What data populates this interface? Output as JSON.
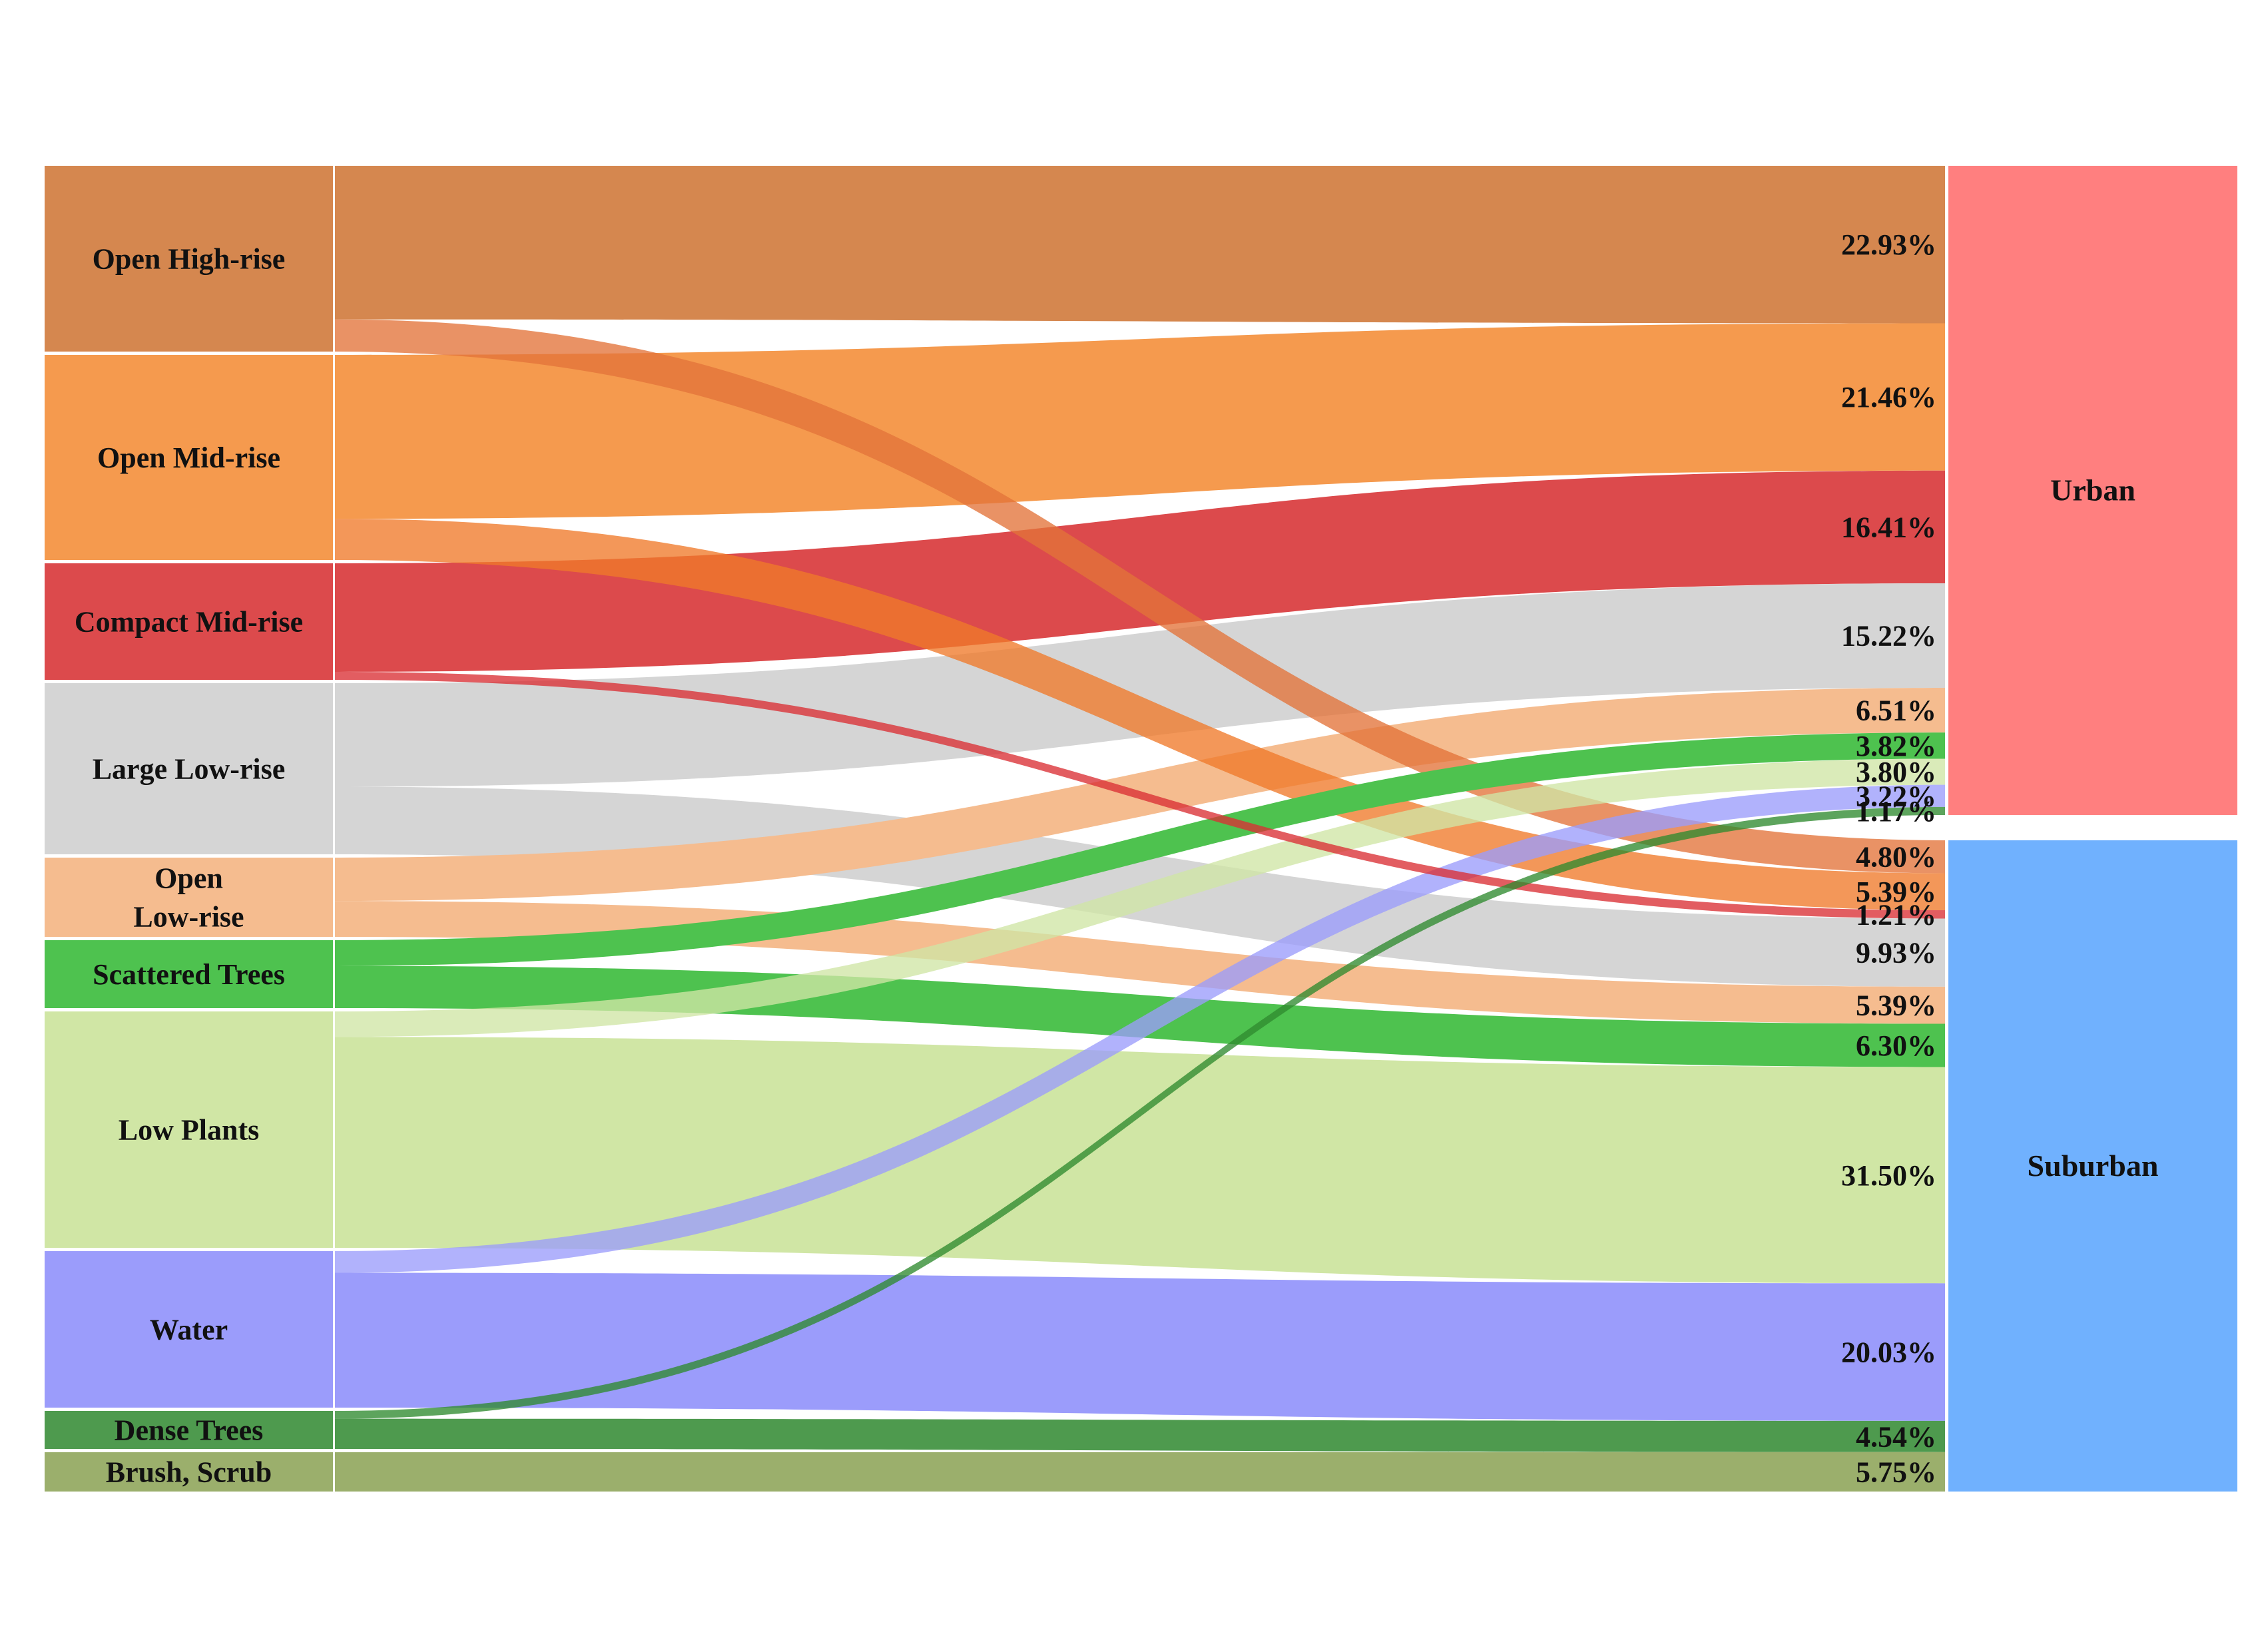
{
  "colors": {
    "open_high_rise": "#D5874F",
    "open_mid_rise": "#F59A4E",
    "compact_mid_rise": "#DC4A4C",
    "large_low_rise": "#D5D5D5",
    "open_low_rise": "#F5BC8F",
    "scattered_trees": "#4EC24F",
    "low_plants": "#D0E6A5",
    "water": "#9B9CFB",
    "dense_trees": "#4E9A4E",
    "brush_scrub": "#9BAF6C",
    "urban": "#FF7F7F",
    "suburban": "#70B1FE",
    "open_high_rise_cross": "#E3733A",
    "open_mid_rise_cross": "#F07A2A",
    "compact_mid_rise_cross": "#DA2F35",
    "dense_trees_cross": "#2F8A2F"
  },
  "sources": [
    {
      "key": "open_high_rise",
      "label": "Open High-rise"
    },
    {
      "key": "open_mid_rise",
      "label": "Open Mid-rise"
    },
    {
      "key": "compact_mid_rise",
      "label": "Compact Mid-rise"
    },
    {
      "key": "large_low_rise",
      "label": "Large Low-rise"
    },
    {
      "key": "open_low_rise",
      "label_line1": "Open",
      "label_line2": "Low-rise"
    },
    {
      "key": "scattered_trees",
      "label": "Scattered Trees"
    },
    {
      "key": "low_plants",
      "label": "Low Plants"
    },
    {
      "key": "water",
      "label": "Water"
    },
    {
      "key": "dense_trees",
      "label": "Dense Trees"
    },
    {
      "key": "brush_scrub",
      "label": "Brush, Scrub"
    }
  ],
  "targets": [
    {
      "key": "urban",
      "label": "Urban"
    },
    {
      "key": "suburban",
      "label": "Suburban"
    }
  ],
  "flows": {
    "urban": [
      {
        "source": "open_high_rise",
        "label": "22.93%",
        "value": 22.93
      },
      {
        "source": "open_mid_rise",
        "label": "21.46%",
        "value": 21.46
      },
      {
        "source": "compact_mid_rise",
        "label": "16.41%",
        "value": 16.41
      },
      {
        "source": "large_low_rise",
        "label": "15.22%",
        "value": 15.22
      },
      {
        "source": "open_low_rise",
        "label": "6.51%",
        "value": 6.51
      },
      {
        "source": "scattered_trees",
        "label": "3.82%",
        "value": 3.82
      },
      {
        "source": "low_plants",
        "label": "3.80%",
        "value": 3.8
      },
      {
        "source": "water",
        "label": "3.22%",
        "value": 3.22
      },
      {
        "source": "dense_trees",
        "label": "1.17%",
        "value": 1.17
      }
    ],
    "suburban": [
      {
        "source": "open_high_rise",
        "label": "4.80%",
        "value": 4.8
      },
      {
        "source": "open_mid_rise",
        "label": "5.39%",
        "value": 5.39
      },
      {
        "source": "compact_mid_rise",
        "label": "1.21%",
        "value": 1.21
      },
      {
        "source": "large_low_rise",
        "label": "9.93%",
        "value": 9.93
      },
      {
        "source": "open_low_rise",
        "label": "5.39%",
        "value": 5.39
      },
      {
        "source": "scattered_trees",
        "label": "6.30%",
        "value": 6.3
      },
      {
        "source": "low_plants",
        "label": "31.50%",
        "value": 31.5
      },
      {
        "source": "water",
        "label": "20.03%",
        "value": 20.03
      },
      {
        "source": "dense_trees",
        "label": "4.54%",
        "value": 4.54
      },
      {
        "source": "brush_scrub",
        "label": "5.75%",
        "value": 5.75
      }
    ]
  }
}
